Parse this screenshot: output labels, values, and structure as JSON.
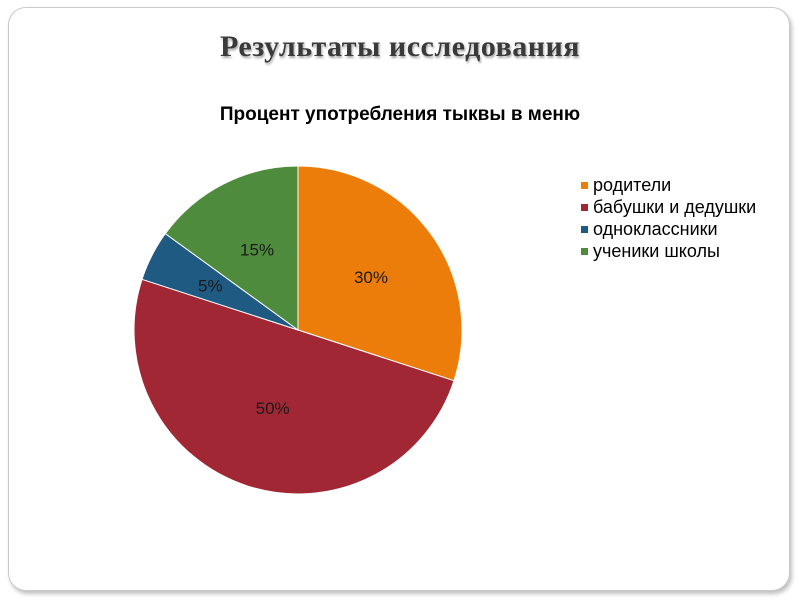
{
  "slide": {
    "title": "Результаты исследования"
  },
  "chart_data": {
    "type": "pie",
    "title": "Процент употребления тыквы в меню",
    "categories": [
      "родители",
      "бабушки и дедушки",
      "одноклассники",
      "ученики школы"
    ],
    "values": [
      30,
      50,
      5,
      15
    ],
    "data_labels": [
      "30%",
      "50%",
      "5%",
      "15%"
    ],
    "colors": [
      "#ED7D0A",
      "#A12734",
      "#1F5A82",
      "#4F8B3D"
    ],
    "legend_position": "right",
    "start": "top",
    "direction": "clockwise"
  }
}
